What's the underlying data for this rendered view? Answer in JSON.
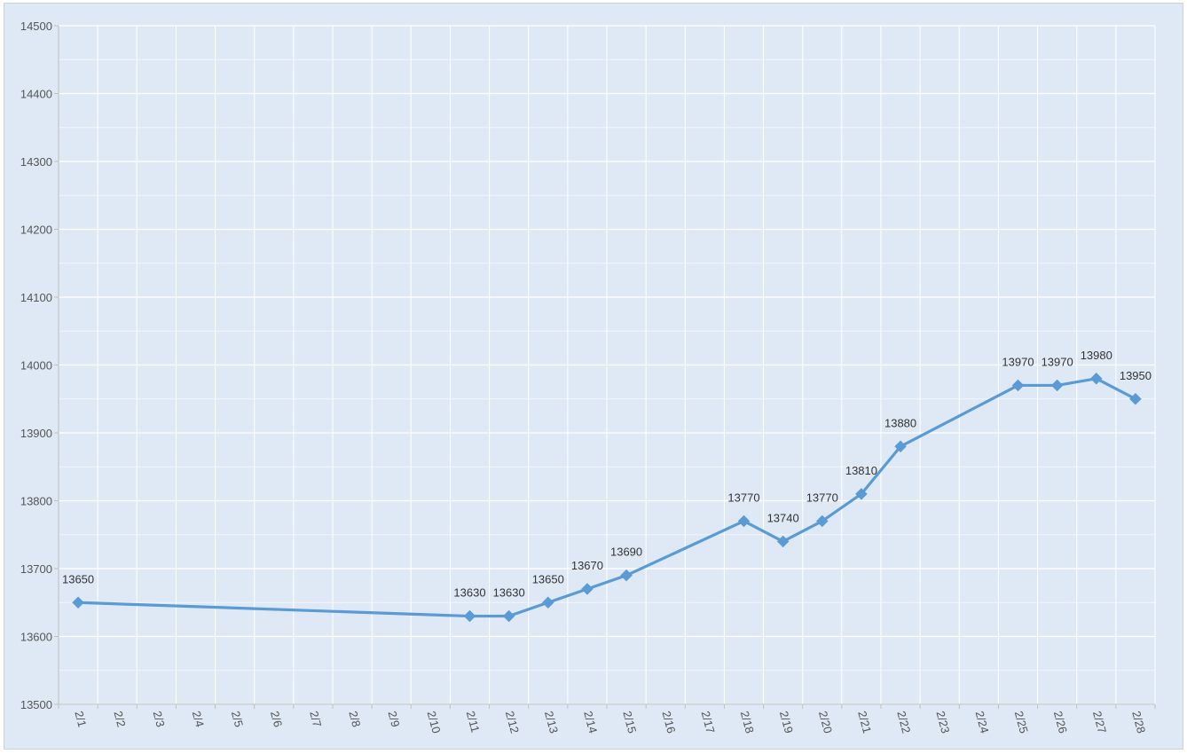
{
  "chart_data": {
    "type": "line",
    "title": "",
    "xlabel": "",
    "ylabel": "",
    "ylim": [
      13500,
      14500
    ],
    "y_ticks": [
      "13500",
      "13600",
      "13700",
      "13800",
      "13900",
      "14000",
      "14100",
      "14200",
      "14300",
      "14400",
      "14500"
    ],
    "categories": [
      "2/1",
      "2/2",
      "2/3",
      "2/4",
      "2/5",
      "2/6",
      "2/7",
      "2/8",
      "2/9",
      "2/10",
      "2/11",
      "2/12",
      "2/13",
      "2/14",
      "2/15",
      "2/16",
      "2/17",
      "2/18",
      "2/19",
      "2/20",
      "2/21",
      "2/22",
      "2/23",
      "2/24",
      "2/25",
      "2/26",
      "2/27",
      "2/28"
    ],
    "grid": true,
    "series": [
      {
        "name": "",
        "color": "#5b9bd5",
        "points": [
          {
            "x": "2/1",
            "y": 13650
          },
          {
            "x": "2/11",
            "y": 13630
          },
          {
            "x": "2/12",
            "y": 13630
          },
          {
            "x": "2/13",
            "y": 13650
          },
          {
            "x": "2/14",
            "y": 13670
          },
          {
            "x": "2/15",
            "y": 13690
          },
          {
            "x": "2/18",
            "y": 13770
          },
          {
            "x": "2/19",
            "y": 13740
          },
          {
            "x": "2/20",
            "y": 13770
          },
          {
            "x": "2/21",
            "y": 13810
          },
          {
            "x": "2/22",
            "y": 13880
          },
          {
            "x": "2/25",
            "y": 13970
          },
          {
            "x": "2/26",
            "y": 13970
          },
          {
            "x": "2/27",
            "y": 13980
          },
          {
            "x": "2/28",
            "y": 13950
          }
        ]
      }
    ]
  }
}
